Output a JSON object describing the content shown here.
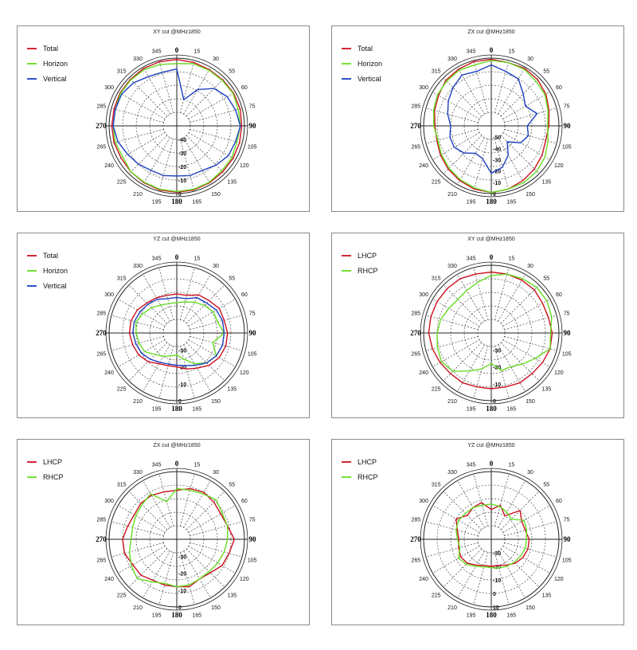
{
  "colors": {
    "Total": "#cc1020",
    "Horizon": "#66dd22",
    "Vertical": "#1a3fbf",
    "LHCP": "#cc1020",
    "RHCP": "#66dd22"
  },
  "chart_data": [
    {
      "type": "polar-line",
      "title": "XY cut @MHz1850",
      "angle_ticks": [
        "0",
        "15",
        "30",
        "55",
        "60",
        "75",
        "90",
        "105",
        "120",
        "135",
        "150",
        "165",
        "180",
        "195",
        "210",
        "225",
        "240",
        "265",
        "270",
        "285",
        "300",
        "315",
        "330",
        "345"
      ],
      "radial_labels": [
        "-40",
        "-30",
        "-20",
        "-10",
        "0"
      ],
      "rlim": [
        -50,
        0
      ],
      "legend": [
        "Total",
        "Horizon",
        "Vertical"
      ],
      "series": [
        {
          "name": "Total",
          "values": [
            -1,
            -1.5,
            -2,
            -2,
            -1.5,
            -1.5,
            -2,
            -2,
            -2,
            -2,
            -1.5,
            -1,
            -1,
            -1,
            -1.5,
            -2,
            -2.5,
            -2,
            -2,
            -2,
            -1.5,
            -1.5,
            -1,
            -1
          ]
        },
        {
          "name": "Horizon",
          "values": [
            -4,
            -2.5,
            -2.5,
            -2.5,
            -2,
            -3,
            -3,
            -4,
            -3,
            -3,
            -2,
            -1.5,
            -1.5,
            -1.5,
            -2,
            -2,
            -4,
            -3,
            -3,
            -3,
            -2,
            -2,
            -2,
            -3
          ]
        },
        {
          "name": "Vertical",
          "values": [
            -8,
            -30,
            -19,
            -11,
            -7,
            -5,
            -3,
            -5,
            -6,
            -9,
            -12,
            -12,
            -13,
            -12,
            -12,
            -10,
            -8,
            -5,
            -3,
            -3,
            -3,
            -5,
            -8,
            -9
          ]
        }
      ]
    },
    {
      "type": "polar-line",
      "title": "ZX cut @MHz1850",
      "angle_ticks": [
        "0",
        "15",
        "30",
        "55",
        "60",
        "75",
        "90",
        "105",
        "120",
        "135",
        "150",
        "165",
        "180",
        "195",
        "210",
        "225",
        "240",
        "265",
        "270",
        "285",
        "300",
        "315",
        "330",
        "345"
      ],
      "radial_labels": [
        "-50",
        "-40",
        "-30",
        "-20",
        "-10",
        "0"
      ],
      "rlim": [
        -60,
        0
      ],
      "legend": [
        "Total",
        "Horizon",
        "Vertical"
      ],
      "series": [
        {
          "name": "Total",
          "values": [
            -1,
            -2,
            -1,
            -2,
            -4,
            -7,
            -9,
            -10,
            -8,
            -6,
            -4,
            -2,
            -1,
            -2,
            -4,
            -6,
            -8,
            -10,
            -10,
            -8,
            -6,
            -3,
            -2,
            -1
          ]
        },
        {
          "name": "Horizon",
          "values": [
            -2,
            -2,
            -2,
            -4,
            -5,
            -8,
            -10,
            -8,
            -5,
            -3,
            -2,
            -2,
            -1,
            -3,
            -5,
            -7,
            -9,
            -11,
            -9,
            -7,
            -5,
            -4,
            -3,
            -4
          ]
        },
        {
          "name": "Vertical",
          "values": [
            -6,
            -10,
            -12,
            -20,
            -25,
            -18,
            -28,
            -26,
            -30,
            -40,
            -30,
            -22,
            -18,
            -30,
            -32,
            -26,
            -22,
            -22,
            -24,
            -20,
            -16,
            -12,
            -8,
            -10
          ]
        }
      ]
    },
    {
      "type": "polar-line",
      "title": "YZ cut @MHz1850",
      "angle_ticks": [
        "0",
        "15",
        "30",
        "55",
        "60",
        "75",
        "90",
        "105",
        "120",
        "135",
        "150",
        "165",
        "180",
        "195",
        "210",
        "225",
        "240",
        "265",
        "270",
        "285",
        "300",
        "315",
        "330",
        "345"
      ],
      "radial_labels": [
        "-30",
        "-20",
        "-10",
        "0"
      ],
      "rlim": [
        -40,
        0
      ],
      "legend": [
        "Total",
        "Horizon",
        "Vertical"
      ],
      "series": [
        {
          "name": "Total",
          "values": [
            -17,
            -17,
            -14,
            -13,
            -11,
            -11,
            -10,
            -10,
            -11,
            -13,
            -16,
            -18,
            -20,
            -20,
            -19,
            -16,
            -14,
            -13,
            -12,
            -12,
            -13,
            -15,
            -16,
            -17
          ]
        },
        {
          "name": "Horizon",
          "values": [
            -22,
            -21,
            -19,
            -17,
            -15,
            -15,
            -12,
            -18,
            -13,
            -15,
            -19,
            -24,
            -27,
            -26,
            -24,
            -22,
            -18,
            -17,
            -16,
            -15,
            -17,
            -19,
            -21,
            -22
          ]
        },
        {
          "name": "Vertical",
          "values": [
            -19,
            -19,
            -16,
            -15,
            -13,
            -12,
            -12,
            -12,
            -13,
            -15,
            -18,
            -20,
            -21,
            -21,
            -20,
            -18,
            -16,
            -15,
            -14,
            -14,
            -15,
            -16,
            -17,
            -19
          ]
        }
      ]
    },
    {
      "type": "polar-line",
      "title": "XY cut @MHz1850",
      "angle_ticks": [
        "0",
        "15",
        "30",
        "55",
        "60",
        "75",
        "90",
        "105",
        "120",
        "135",
        "150",
        "165",
        "180",
        "195",
        "210",
        "225",
        "240",
        "265",
        "270",
        "285",
        "300",
        "315",
        "330",
        "345"
      ],
      "radial_labels": [
        "-30",
        "-20",
        "-10",
        "0"
      ],
      "rlim": [
        -40,
        0
      ],
      "legend": [
        "LHCP",
        "RHCP"
      ],
      "series": [
        {
          "name": "LHCP",
          "values": [
            -4,
            -4,
            -4,
            -4,
            -5,
            -5,
            -4,
            -4,
            -5,
            -6,
            -6,
            -7,
            -7,
            -7,
            -6,
            -6,
            -5,
            -4,
            -3,
            -3,
            -3,
            -3,
            -3,
            -4
          ]
        },
        {
          "name": "RHCP",
          "values": [
            -6,
            -4,
            -3,
            -2,
            -2,
            -3,
            -5,
            -4,
            -10,
            -14,
            -17,
            -17,
            -22,
            -18,
            -14,
            -8,
            -6,
            -7,
            -8,
            -9,
            -11,
            -12,
            -11,
            -9
          ]
        }
      ]
    },
    {
      "type": "polar-line",
      "title": "ZX cut @MHz1850",
      "angle_ticks": [
        "0",
        "15",
        "30",
        "55",
        "60",
        "75",
        "90",
        "105",
        "120",
        "135",
        "150",
        "165",
        "180",
        "195",
        "210",
        "225",
        "240",
        "265",
        "270",
        "285",
        "300",
        "315",
        "330",
        "345"
      ],
      "radial_labels": [
        "-30",
        "-20",
        "-10",
        "0"
      ],
      "rlim": [
        -40,
        0
      ],
      "legend": [
        "LHCP",
        "RHCP"
      ],
      "series": [
        {
          "name": "LHCP",
          "values": [
            -11,
            -9,
            -8,
            -9,
            -10,
            -9,
            -6,
            -8,
            -9,
            -12,
            -13,
            -11,
            -12,
            -12,
            -12,
            -10,
            -10,
            -8,
            -8,
            -10,
            -11,
            -10,
            -10,
            -11
          ]
        },
        {
          "name": "RHCP",
          "values": [
            -10,
            -10,
            -9,
            -7,
            -9,
            -9,
            -10,
            -11,
            -12,
            -13,
            -13,
            -12,
            -12,
            -13,
            -11,
            -7,
            -9,
            -11,
            -13,
            -13,
            -12,
            -11,
            -9,
            -17
          ]
        }
      ]
    },
    {
      "type": "polar-line",
      "title": "YZ cut @MHz1850",
      "angle_ticks": [
        "0",
        "15",
        "30",
        "55",
        "60",
        "75",
        "90",
        "105",
        "120",
        "135",
        "150",
        "165",
        "180",
        "195",
        "210",
        "225",
        "240",
        "265",
        "270",
        "285",
        "300",
        "315",
        "330",
        "345"
      ],
      "radial_labels": [
        "-30",
        "-20",
        "-10",
        "0",
        "10"
      ],
      "rlim": [
        -40,
        10
      ],
      "legend": [
        "LHCP",
        "RHCP"
      ],
      "series": [
        {
          "name": "LHCP",
          "values": [
            -18,
            -14,
            -20,
            -10,
            -14,
            -14,
            -12,
            -12,
            -13,
            -15,
            -18,
            -20,
            -20,
            -20,
            -18,
            -15,
            -14,
            -15,
            -16,
            -14,
            -10,
            -15,
            -13,
            -12
          ]
        },
        {
          "name": "RHCP",
          "values": [
            -14,
            -15,
            -17,
            -19,
            -12,
            -13,
            -14,
            -14,
            -15,
            -16,
            -17,
            -18,
            -19,
            -19,
            -17,
            -14,
            -12,
            -16,
            -15,
            -13,
            -12,
            -13,
            -13,
            -14
          ]
        }
      ]
    }
  ]
}
